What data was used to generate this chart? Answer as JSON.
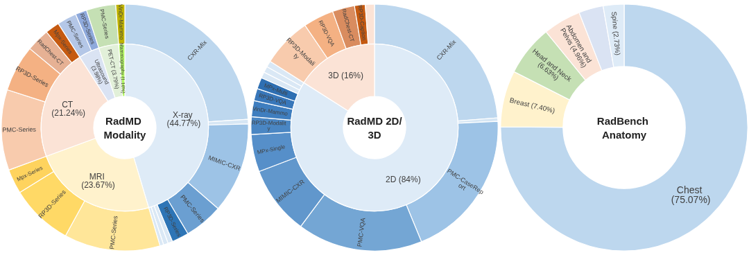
{
  "chart_data": [
    {
      "type": "donut",
      "title": "RadMD Modality",
      "categories": [
        "X-ray (44.77%)",
        "MRI (23.67%)",
        "CT (21.24%)",
        "Ultrasound (3.98%)",
        "PET-CT (3.79%)",
        "Mammography (1.16%)"
      ],
      "values": [
        44.77,
        23.67,
        21.24,
        3.98,
        3.79,
        1.16
      ],
      "colors": [
        "#deebf7",
        "#fff2cc",
        "#fbe3d6",
        "#dae3f3",
        "#e2f0d9",
        "#b3f566"
      ]
    },
    {
      "type": "donut",
      "categories": [
        "CXR-Mix",
        null,
        "MIMIC-CXR",
        "PMC-Series",
        "RP3D-Series",
        null,
        null,
        null,
        "PMC-Series",
        "RP3D-Series",
        "Mpx-Series",
        "PMC-Series",
        "RP3D-Series",
        "RadChest-CT",
        "Mpx-Series",
        "PMC-Series",
        "RP3D-Series",
        "PMC-Series",
        "VinDr-Mammo"
      ],
      "values": [
        23.6,
        0.6,
        11.7,
        5,
        2.2,
        0.6,
        0.6,
        0.47,
        12.4,
        8.1,
        3.17,
        10.4,
        6,
        3,
        1.84,
        2.5,
        1.48,
        3.79,
        1.16
      ],
      "colors": [
        "#bdd7ee",
        "#d6e6f4",
        "#9dc3e6",
        "#6b9fd1",
        "#2e75b6",
        "#dae8f5",
        "#dae8f5",
        "#dae8f5",
        "#ffe699",
        "#ffd966",
        "#fed35e",
        "#f8cbad",
        "#f4b183",
        "#e6b194",
        "#c55a11",
        "#b4c7e7",
        "#8faadc",
        "#c5e0b4",
        "#bfb300"
      ]
    },
    {
      "type": "donut",
      "title": "RadMD 2D/3D",
      "categories": [
        "2D (84%)",
        "3D (16%)"
      ],
      "values": [
        84,
        16
      ],
      "colors": [
        "#deebf7",
        "#fbe3d6"
      ]
    },
    {
      "type": "donut",
      "categories": [
        "CXR-Mix",
        null,
        "PMC-CaseReport",
        "PMC-VQA",
        "MIMIC-CXR",
        "MPx-Single",
        "RP3D-Modality",
        "VinDr-Mammo",
        "RP3D-VQA",
        "MPx-Multi",
        null,
        null,
        null,
        "RP3D-Modality",
        "RP3D-VQA",
        "RadChest-CT",
        "RP3D-Caption",
        null
      ],
      "values": [
        23.75,
        0.45,
        19.6,
        16.4,
        9,
        4.9,
        2.3,
        2.1,
        1.6,
        1.5,
        0.8,
        0.8,
        0.8,
        6.5,
        4,
        2.9,
        1.4,
        1.2
      ],
      "colors": [
        "#bdd7ee",
        "#d6e6f4",
        "#9dc3e6",
        "#74a6d4",
        "#6197cc",
        "#568fc9",
        "#4a86c3",
        "#3f7ebf",
        "#3877ba",
        "#2e6fb2",
        "#dae8f5",
        "#dae8f5",
        "#dae8f5",
        "#f8cbad",
        "#f4b183",
        "#d98c5f",
        "#c55a11",
        "#fbe3d6"
      ]
    },
    {
      "type": "donut",
      "title": "RadBench Anatomy",
      "categories": [
        "Chest (75.07%)",
        "Breast (7.40%)",
        "Head and Neck (6.63%)",
        "Abdomen and Pelvis (4.96%)",
        null,
        "Spine (2.73%)"
      ],
      "values": [
        75.07,
        7.4,
        6.63,
        4.96,
        3.21,
        2.73
      ],
      "colors": [
        "#bdd7ee",
        "#fff2cc",
        "#c5e0b4",
        "#fbe3d6",
        "#dae3f3",
        "#deebf7"
      ]
    }
  ]
}
